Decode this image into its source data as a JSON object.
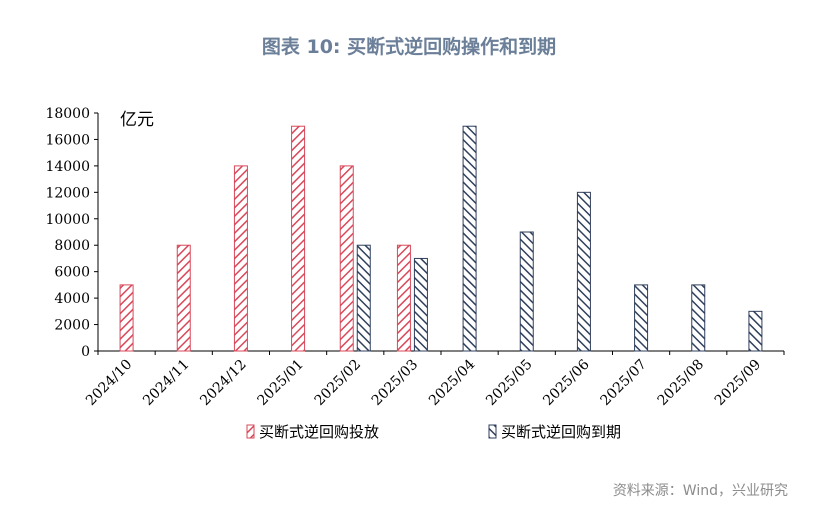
{
  "title": "图表 10: 买断式逆回购操作和到期",
  "source": "资料来源：Wind，兴业研究",
  "chart_data": {
    "type": "bar",
    "unit_label": "亿元",
    "categories": [
      "2024/10",
      "2024/11",
      "2024/12",
      "2025/01",
      "2025/02",
      "2025/03",
      "2025/04",
      "2025/05",
      "2025/06",
      "2025/07",
      "2025/08",
      "2025/09"
    ],
    "ylim": [
      0,
      18000
    ],
    "yticks": [
      0,
      2000,
      4000,
      6000,
      8000,
      10000,
      12000,
      14000,
      16000,
      18000
    ],
    "legend_position": "bottom",
    "series": [
      {
        "name": "买断式逆回购投放",
        "color": "#d9485a",
        "values": [
          5000,
          8000,
          14000,
          17000,
          14000,
          8000,
          null,
          null,
          null,
          null,
          null,
          null
        ]
      },
      {
        "name": "买断式逆回购到期",
        "color": "#2f3f5c",
        "values": [
          null,
          null,
          null,
          null,
          8000,
          7000,
          17000,
          9000,
          12000,
          5000,
          5000,
          3000
        ]
      }
    ]
  }
}
